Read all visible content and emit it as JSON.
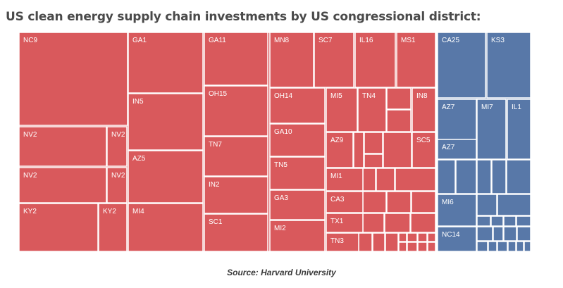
{
  "title": "US clean energy supply chain investments by US congressional district:",
  "source": "Source: Harvard University",
  "colors": {
    "republican": "#d9595c",
    "democrat": "#5878a8",
    "gap": "#ffffff",
    "label": "#ffffff"
  },
  "chart_data": {
    "type": "treemap",
    "title": "US clean energy supply chain investments by US congressional district:",
    "value_note": "Investment values are not printed in the image; rectangle areas only.",
    "groups": [
      {
        "name": "Republican-held districts",
        "color": "republican",
        "tiles": [
          {
            "label": "NC9",
            "col": 0,
            "row": 0
          },
          {
            "label": "NV2",
            "col": 0,
            "row": 1
          },
          {
            "label": "NV2",
            "col": 0,
            "row": 1
          },
          {
            "label": "NV2",
            "col": 0,
            "row": 1
          },
          {
            "label": "NV2",
            "col": 0,
            "row": 1
          },
          {
            "label": "KY2",
            "col": 0,
            "row": 2
          },
          {
            "label": "KY2",
            "col": 0,
            "row": 2
          },
          {
            "label": "GA1",
            "col": 1,
            "row": 0
          },
          {
            "label": "IN5",
            "col": 1,
            "row": 1
          },
          {
            "label": "AZ5",
            "col": 1,
            "row": 2
          },
          {
            "label": "MI4",
            "col": 1,
            "row": 3
          },
          {
            "label": "GA11",
            "col": 2,
            "row": 0
          },
          {
            "label": "OH15",
            "col": 2,
            "row": 1
          },
          {
            "label": "TN7",
            "col": 2,
            "row": 2
          },
          {
            "label": "IN2",
            "col": 2,
            "row": 3
          },
          {
            "label": "SC1",
            "col": 2,
            "row": 4
          },
          {
            "label": "MN8",
            "col": 3,
            "row": 0
          },
          {
            "label": "SC7",
            "col": 3,
            "row": 0
          },
          {
            "label": "IL16",
            "col": 3,
            "row": 0
          },
          {
            "label": "MS1",
            "col": 3,
            "row": 0
          },
          {
            "label": "OH14",
            "col": 3,
            "row": 1
          },
          {
            "label": "GA10",
            "col": 3,
            "row": 2
          },
          {
            "label": "TN5",
            "col": 3,
            "row": 3
          },
          {
            "label": "GA3",
            "col": 3,
            "row": 4
          },
          {
            "label": "MI2",
            "col": 3,
            "row": 5
          },
          {
            "label": "MI5",
            "col": 4,
            "row": 1
          },
          {
            "label": "TN4",
            "col": 4,
            "row": 1
          },
          {
            "label": "IN8",
            "col": 4,
            "row": 1
          },
          {
            "label": "AZ9",
            "col": 4,
            "row": 2
          },
          {
            "label": "SC5",
            "col": 4,
            "row": 2
          },
          {
            "label": "MI1",
            "col": 4,
            "row": 3
          },
          {
            "label": "CA3",
            "col": 4,
            "row": 4
          },
          {
            "label": "TX1",
            "col": 4,
            "row": 5
          },
          {
            "label": "TN3",
            "col": 4,
            "row": 6
          }
        ]
      },
      {
        "name": "Democrat-held districts",
        "color": "democrat",
        "tiles": [
          {
            "label": "CA25",
            "col": 5,
            "row": 0
          },
          {
            "label": "KS3",
            "col": 5,
            "row": 0
          },
          {
            "label": "AZ7",
            "col": 5,
            "row": 1
          },
          {
            "label": "MI7",
            "col": 5,
            "row": 1
          },
          {
            "label": "IL1",
            "col": 5,
            "row": 1
          },
          {
            "label": "AZ7",
            "col": 5,
            "row": 2
          },
          {
            "label": "MI6",
            "col": 5,
            "row": 3
          },
          {
            "label": "NC14",
            "col": 5,
            "row": 4
          }
        ]
      }
    ]
  }
}
